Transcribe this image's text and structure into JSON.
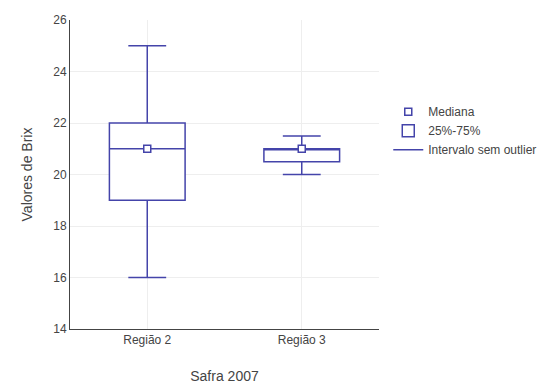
{
  "chart_data": {
    "type": "box",
    "categories": [
      "Região 2",
      "Região 3"
    ],
    "median": [
      21.0,
      21.0
    ],
    "q1": [
      19.0,
      20.5
    ],
    "q3": [
      22.0,
      21.0
    ],
    "whisker_low": [
      16.0,
      20.0
    ],
    "whisker_high": [
      25.0,
      21.5
    ],
    "xlabel": "Safra 2007",
    "ylabel": "Valores de Brix",
    "color": "#4444aa",
    "ylim": [
      14,
      26
    ],
    "yticks": [
      14,
      16,
      18,
      20,
      22,
      24,
      26
    ],
    "grid": true,
    "legend": "right",
    "legend_labels": [
      "Mediana",
      "25%-75%",
      "Intervalo sem outlier"
    ]
  }
}
